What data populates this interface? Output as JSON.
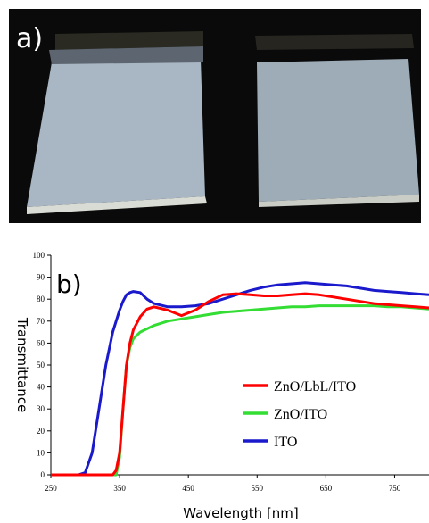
{
  "chart_data": {
    "type": "line",
    "panel_label_a": "a)",
    "title": "b)",
    "x_label": "Wavelength [nm]",
    "y_label": "Transmittance",
    "xlim": [
      250,
      800
    ],
    "xticks": [
      250,
      350,
      450,
      550,
      650,
      750
    ],
    "ylim": [
      0,
      100
    ],
    "yticks": [
      0,
      10,
      20,
      30,
      40,
      50,
      60,
      70,
      80,
      90,
      100
    ],
    "x": [
      250,
      290,
      300,
      310,
      320,
      330,
      340,
      345,
      350,
      355,
      360,
      365,
      370,
      380,
      390,
      400,
      420,
      440,
      460,
      480,
      500,
      520,
      540,
      560,
      580,
      600,
      620,
      640,
      660,
      680,
      700,
      720,
      740,
      760,
      780,
      800
    ],
    "series": [
      {
        "name": "ZnO/LbL/ITO",
        "color": "#ff0000",
        "values": [
          0,
          0,
          0,
          0,
          0,
          0,
          0,
          2,
          10,
          30,
          50,
          60,
          66,
          72,
          75.5,
          76.5,
          75,
          72.5,
          75,
          79,
          82,
          82.5,
          82,
          81.5,
          81.5,
          82,
          82.5,
          82,
          81,
          80,
          79,
          78,
          77.5,
          77,
          76.5,
          76
        ]
      },
      {
        "name": "ZnO/ITO",
        "color": "#33dd33",
        "values": [
          0,
          0,
          0,
          0,
          0,
          0,
          0,
          0,
          8,
          30,
          50,
          58,
          62,
          65,
          66.5,
          68,
          70,
          71,
          72,
          73,
          74,
          74.5,
          75,
          75.5,
          76,
          76.5,
          76.5,
          77,
          77,
          77,
          77,
          77,
          76.5,
          76.5,
          76,
          75.5
        ]
      },
      {
        "name": "ITO",
        "color": "#1a1acc",
        "values": [
          0,
          0,
          1,
          10,
          30,
          50,
          65,
          70,
          75,
          79,
          82,
          83,
          83.5,
          83,
          80,
          78,
          76.5,
          76.5,
          77,
          78,
          80,
          82,
          84,
          85.5,
          86.5,
          87,
          87.5,
          87,
          86.5,
          86,
          85,
          84,
          83.5,
          83,
          82.5,
          82
        ]
      }
    ]
  }
}
